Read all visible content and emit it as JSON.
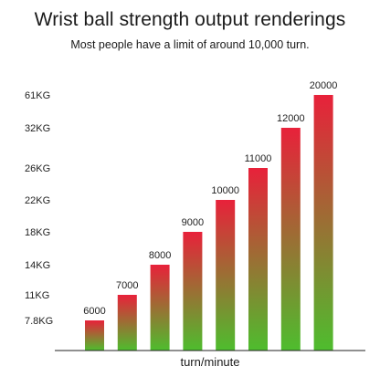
{
  "title": "Wrist ball strength output renderings",
  "subtitle": "Most people have a limit of around 10,000 turn.",
  "colors": {
    "bar_top": "#e8213a",
    "bar_bottom": "#4ebd2e",
    "axis": "#222222"
  },
  "chart_data": {
    "type": "bar",
    "title": "Wrist ball strength output renderings",
    "subtitle": "Most people have a limit of around 10,000 turn.",
    "xlabel": "turn/minute",
    "ylabel": "",
    "y_tick_labels": [
      "7.8KG",
      "11KG",
      "14KG",
      "18KG",
      "22KG",
      "26KG",
      "32KG",
      "61KG"
    ],
    "categories": [
      "6000",
      "7000",
      "8000",
      "9000",
      "10000",
      "11000",
      "12000",
      "20000"
    ],
    "values": [
      6000,
      7000,
      8000,
      9000,
      10000,
      11000,
      12000,
      20000
    ],
    "strength_kg": [
      7.8,
      11,
      14,
      18,
      22,
      26,
      32,
      61
    ],
    "data_labels": [
      "6000",
      "7000",
      "8000",
      "9000",
      "10000",
      "11000",
      "12000",
      "20000"
    ],
    "grid": false,
    "legend": "none"
  }
}
